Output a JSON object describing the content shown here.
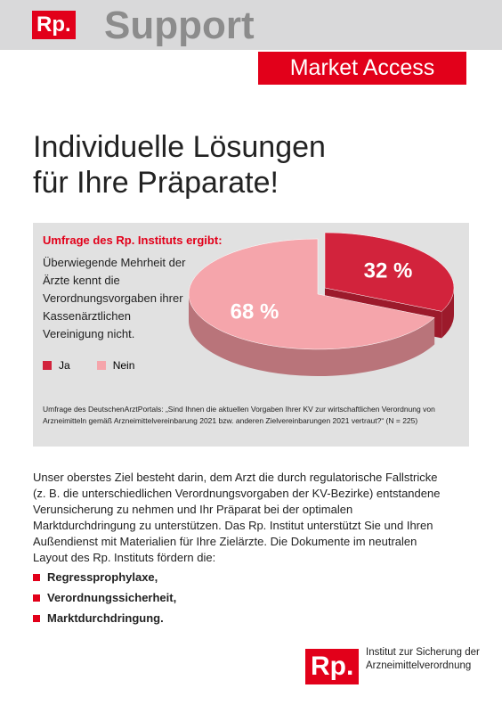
{
  "header": {
    "logo": "Rp.",
    "title": "Support",
    "badge": "Market Access"
  },
  "headline": "Individuelle Lösungen für Ihre Präparate!",
  "chart_data": {
    "type": "pie",
    "title": "Umfrage des Rp. Instituts ergibt:",
    "subtitle": "Überwiegende Mehrheit der Ärzte kennt die Verordnungsvorgaben ihrer Kassenärztlichen Vereinigung nicht.",
    "categories": [
      "Ja",
      "Nein"
    ],
    "values": [
      32,
      68
    ],
    "value_labels": [
      "32 %",
      "68 %"
    ],
    "colors": [
      "#d2233c",
      "#f5a5ab"
    ],
    "side_colors": [
      "#9c1a2b",
      "#b9747a"
    ],
    "source": "Umfrage des DeutschenArztPortals: „Sind Ihnen die aktuellen Vorgaben Ihrer KV zur wirtschaftlichen Verordnung von Arzneimitteln gemäß Arzneimittelvereinbarung 2021 bzw. anderen Zielvereinbarungen 2021 vertraut?“ (N = 225)"
  },
  "body": "Unser oberstes Ziel besteht darin, dem Arzt die durch regulatorische Fallstricke (z. B. die unterschiedlichen Verordnungsvorgaben der KV-Bezirke) entstandene Verunsicherung zu nehmen und Ihr Präparat bei der optimalen Marktdurchdringung zu unterstützen. Das Rp. Institut unterstützt Sie und Ihren Außendienst mit Materialien für Ihre Zielärzte. Die Dokumente im neutralen Layout des Rp. Instituts fördern die:",
  "bullets": [
    "Regressprophylaxe,",
    "Verordnungssicherheit,",
    "Marktdurchdringung."
  ],
  "footer": {
    "logo": "Rp.",
    "name": "Institut zur Sicherung der Arzneimittelverordnung"
  }
}
